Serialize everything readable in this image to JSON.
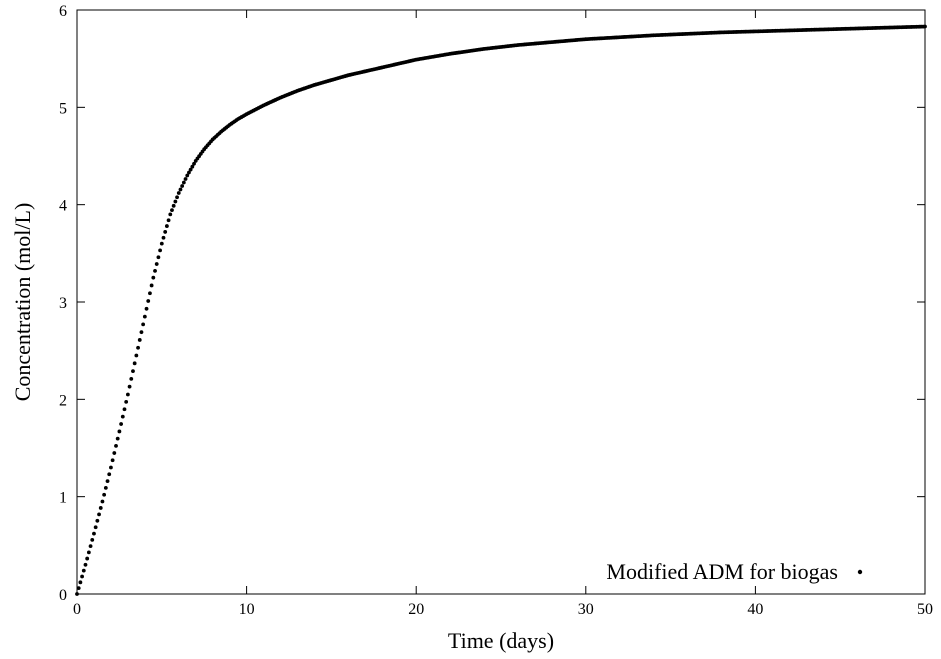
{
  "chart_data": {
    "type": "scatter",
    "title": "",
    "xlabel": "Time (days)",
    "ylabel": "Concentration (mol/L)",
    "xlim": [
      0,
      50
    ],
    "ylim": [
      0,
      6
    ],
    "xticks": [
      0,
      10,
      20,
      30,
      40,
      50
    ],
    "yticks": [
      0,
      1,
      2,
      3,
      4,
      5,
      6
    ],
    "xtick_labels": [
      "0",
      "10",
      "20",
      "30",
      "40",
      "50"
    ],
    "ytick_labels": [
      "0",
      "1",
      "2",
      "3",
      "4",
      "5",
      "6"
    ],
    "grid": false,
    "legend_position": "bottom-right",
    "series": [
      {
        "name": "Modified ADM for biogas",
        "marker": "dot",
        "color": "#000000",
        "x": [
          0,
          0.5,
          1,
          1.5,
          2,
          2.5,
          3,
          3.5,
          4,
          4.5,
          5,
          5.5,
          6,
          6.5,
          7,
          7.5,
          8,
          8.5,
          9,
          9.5,
          10,
          11,
          12,
          13,
          14,
          15,
          16,
          17,
          18,
          19,
          20,
          22,
          24,
          26,
          28,
          30,
          32,
          34,
          36,
          38,
          40,
          42,
          44,
          46,
          48,
          50
        ],
        "y": [
          0,
          0.3,
          0.62,
          0.95,
          1.3,
          1.67,
          2.05,
          2.45,
          2.85,
          3.25,
          3.6,
          3.9,
          4.12,
          4.3,
          4.45,
          4.57,
          4.67,
          4.75,
          4.82,
          4.88,
          4.93,
          5.02,
          5.1,
          5.17,
          5.23,
          5.28,
          5.33,
          5.37,
          5.41,
          5.45,
          5.49,
          5.55,
          5.6,
          5.64,
          5.67,
          5.7,
          5.72,
          5.74,
          5.755,
          5.77,
          5.78,
          5.79,
          5.8,
          5.81,
          5.82,
          5.83
        ]
      }
    ]
  }
}
